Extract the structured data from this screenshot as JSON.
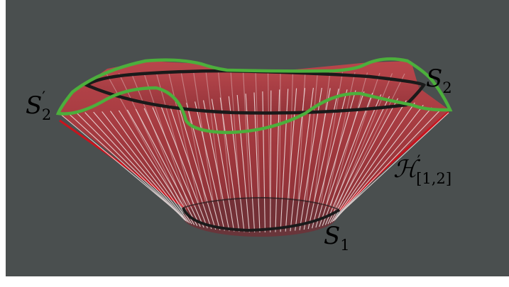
{
  "colors": {
    "canvas": "#ffffff",
    "background": "#4a4f4f",
    "surface_fill": "#b03a3f",
    "surface_edge": "#c8141e",
    "rulings": "#f2e4e4",
    "curve_black": "#1a1a1a",
    "curve_green": "#4caf3c"
  },
  "labels": {
    "s2": {
      "base": "S",
      "sub": "2"
    },
    "s2_prime": {
      "base": "S",
      "sup": "′",
      "sub": "2"
    },
    "s1": {
      "base": "S",
      "sub": "1"
    },
    "h_prime": {
      "base": "ℋ",
      "sup": "′",
      "sub": "[1,2]"
    }
  }
}
